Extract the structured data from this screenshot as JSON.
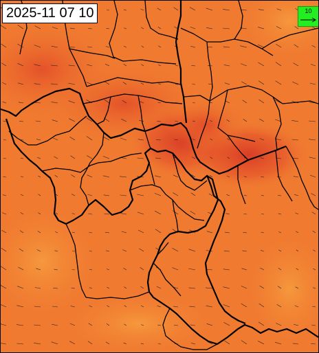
{
  "map": {
    "timestamp": "2025-11 07 10",
    "colors": {
      "field_base": "#f07a30",
      "field_warm": "#e8552a",
      "field_hot": "#d83a26",
      "field_cool": "#f5943a",
      "border": "#000000",
      "legend_bg": "#22ee22",
      "wind_arrow": "#222222"
    },
    "legend": {
      "value": "10",
      "icon": "wind-reference-arrow-icon"
    }
  }
}
